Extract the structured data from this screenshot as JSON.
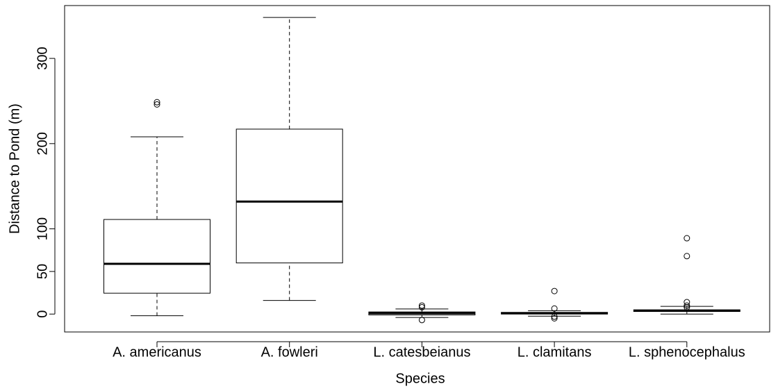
{
  "chart_data": {
    "type": "boxplot",
    "x_label": "Species",
    "y_label": "Distance to Pond (m)",
    "categories": [
      "A. americanus",
      "A. fowleri",
      "L. catesbeianus",
      "L. clamitans",
      "L. sphenocephalus"
    ],
    "boxes": [
      {
        "min": -2,
        "q1": 24.5,
        "median": 59,
        "q3": 111,
        "max": 208,
        "outliers": [
          248.6,
          246
        ]
      },
      {
        "min": 16,
        "q1": 60,
        "median": 132,
        "q3": 217,
        "max": 348,
        "outliers": []
      },
      {
        "min": -4,
        "q1": -1,
        "median": 1,
        "q3": 2.5,
        "max": 6,
        "outliers": [
          10,
          8,
          -7
        ]
      },
      {
        "min": -2.5,
        "q1": 0,
        "median": 1,
        "q3": 2,
        "max": 4,
        "outliers": [
          27,
          6.5,
          -3,
          -5
        ]
      },
      {
        "min": 0,
        "q1": 3,
        "median": 4,
        "q3": 5,
        "max": 9,
        "outliers": [
          89,
          68,
          14,
          10,
          8
        ]
      }
    ],
    "ylim": [
      -21,
      362
    ],
    "yticks": [
      0,
      50,
      100,
      200,
      300
    ],
    "grid": false
  }
}
